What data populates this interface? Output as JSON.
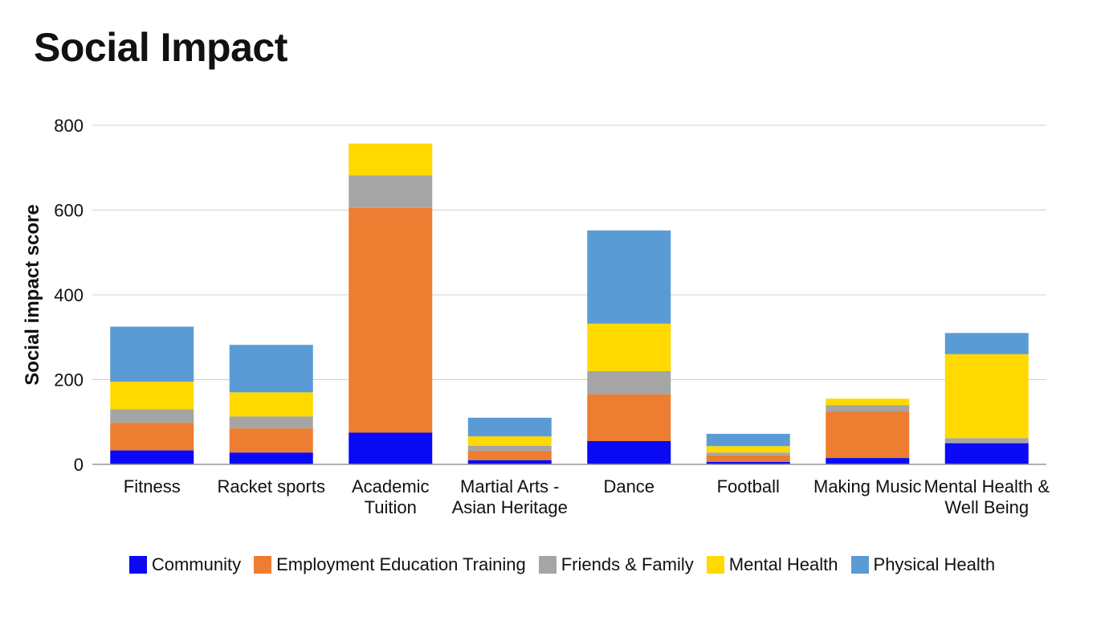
{
  "page_title": "Social Impact",
  "chart_data": {
    "type": "bar",
    "stacked": true,
    "title": "Social Impact",
    "xlabel": "",
    "ylabel": "Social impact score",
    "ylim": [
      0,
      800
    ],
    "yticks": [
      0,
      200,
      400,
      600,
      800
    ],
    "grid": true,
    "legend_position": "bottom",
    "categories": [
      "Fitness",
      "Racket sports",
      "Academic Tuition",
      "Martial Arts - Asian Heritage",
      "Dance",
      "Football",
      "Making Music",
      "Mental Health & Well Being"
    ],
    "category_lines": [
      [
        "Fitness"
      ],
      [
        "Racket sports"
      ],
      [
        "Academic",
        "Tuition"
      ],
      [
        "Martial Arts -",
        "Asian Heritage"
      ],
      [
        "Dance"
      ],
      [
        "Football"
      ],
      [
        "Making Music"
      ],
      [
        "Mental Health &",
        "Well Being"
      ]
    ],
    "series": [
      {
        "name": "Community",
        "color": "#0a0af5",
        "values": [
          33,
          28,
          75,
          10,
          55,
          6,
          15,
          50
        ]
      },
      {
        "name": "Employment Education Training",
        "color": "#ed7d31",
        "values": [
          65,
          57,
          530,
          22,
          110,
          15,
          110,
          0
        ]
      },
      {
        "name": "Friends & Family",
        "color": "#a5a5a5",
        "values": [
          32,
          28,
          77,
          12,
          55,
          7,
          15,
          12
        ]
      },
      {
        "name": "Mental Health",
        "color": "#ffd900",
        "values": [
          65,
          57,
          75,
          22,
          112,
          15,
          15,
          198
        ]
      },
      {
        "name": "Physical Health",
        "color": "#5b9bd5",
        "values": [
          130,
          112,
          0,
          44,
          220,
          29,
          0,
          50
        ]
      }
    ]
  }
}
